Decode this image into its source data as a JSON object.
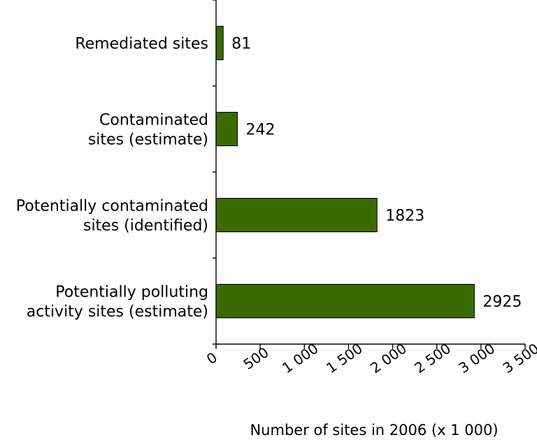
{
  "chart_data": {
    "type": "bar",
    "orientation": "horizontal",
    "categories": [
      [
        "Remediated sites"
      ],
      [
        "Contaminated",
        "sites (estimate)"
      ],
      [
        "Potentially contaminated",
        "sites (identified)"
      ],
      [
        "Potentially polluting",
        "activity sites (estimate)"
      ]
    ],
    "values": [
      81,
      242,
      1823,
      2925
    ],
    "data_labels": [
      "81",
      "242",
      "1823",
      "2925"
    ],
    "x_ticks": [
      {
        "value": 0,
        "label": "0"
      },
      {
        "value": 500,
        "label": "500"
      },
      {
        "value": 1000,
        "label": "1 000"
      },
      {
        "value": 1500,
        "label": "1 500"
      },
      {
        "value": 2000,
        "label": "2 000"
      },
      {
        "value": 2500,
        "label": "2 500"
      },
      {
        "value": 3000,
        "label": "3 000"
      },
      {
        "value": 3500,
        "label": "3 500"
      }
    ],
    "xlim": [
      0,
      3500
    ],
    "xlabel": "Number of sites in 2006 (x 1 000)",
    "ylabel": "",
    "title": "",
    "grid": false,
    "legend": "none",
    "colors": {
      "bar": "#3a6b00",
      "bar_border": "#000000",
      "axis": "#000000"
    }
  }
}
